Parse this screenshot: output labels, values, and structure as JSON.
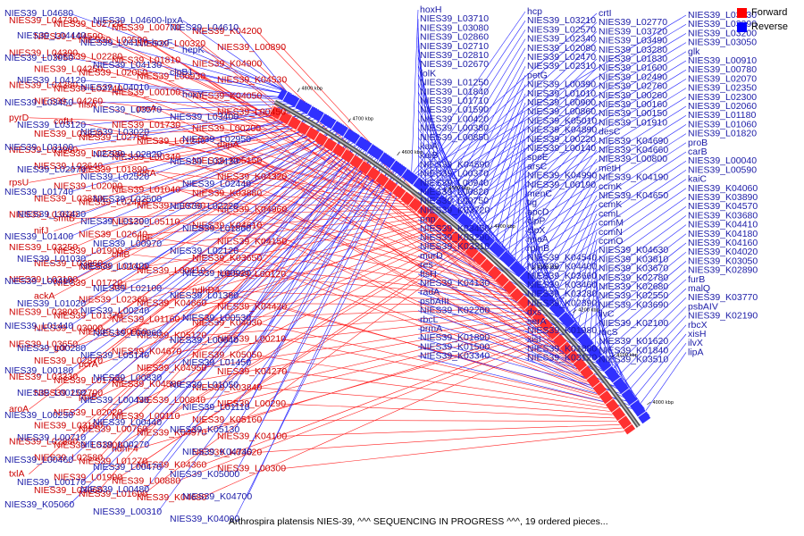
{
  "caption": "Arthrospira platensis NIES-39, ^^^ SEQUENCING IN PROGRESS ^^^, 19 ordered pieces...",
  "legend": [
    {
      "label": "Forward",
      "color": "#ff0000"
    },
    {
      "label": "Reverse",
      "color": "#0000ff"
    }
  ],
  "ticks": [
    "4800 kbp",
    "4700 kbp",
    "4600 kbp",
    "4500 kbp",
    "4400 kbp",
    "4300 kbp",
    "4200 kbp",
    "4100 kbp",
    "4000 kbp"
  ],
  "forward_labels": [
    "NIES39_L04730",
    "NIES39_L04590",
    "NIES39_L04390",
    "NIES39_L04250",
    "NIES39_L04380",
    "NIES39_L04260",
    "pyrD",
    "NIES39_L03820",
    "NIES39_L03960",
    "NIES39_L03640",
    "rpsU",
    "NIES39_L03830",
    "NIES39_L03630",
    "nifJ",
    "NIES39_L03250",
    "NIES39_L03860",
    "NIES39_L03190",
    "ackA",
    "NIES39_L03800",
    "NIES39_L03000",
    "NIES39_L03650",
    "NIES39_L02870",
    "NIES39_L03330",
    "NIES39_L02700",
    "aroA",
    "NIES39_L03180",
    "NIES39_L02880",
    "NIES39_L02580",
    "txlA",
    "NIES39_L03060",
    "NIES39_L02720",
    "NIES39_L02590",
    "NIES39_L02280",
    "NIES39_L02050",
    "NIES39_L02740",
    "hisA",
    "cofH",
    "NIES39_L02750",
    "NIES39_L02290",
    "NIES39_L01890",
    "NIES39_L02090",
    "NIES39_L02410",
    "smtB",
    "NIES39_L02640",
    "NIES39_L01900",
    "NIES39_L02010",
    "NIES39_L01720",
    "NIES39_L02360",
    "NIES39_L01370",
    "NIES39_L00950",
    "gor",
    "pcrA",
    "NIES39_L01780",
    "ppiB",
    "NIES39_L02020",
    "NIES39_L00760",
    "NIES39_L01800",
    "NIES39_L01270",
    "NIES39_L01990",
    "NIES39_L01690",
    "NIES39_L00770",
    "NIES39_L00320",
    "NIES39_L01810",
    "NIES39_L00930",
    "NIES39_L00100",
    "proA",
    "NIES39_L01730",
    "NIES39_L01240",
    "NIES39_L00340",
    "petA",
    "NIES39_L01040",
    "NIES39_L00790",
    "NIES39_L05110",
    "ribF",
    "chlB",
    "NIES39_L00410",
    "asd",
    "NIES39_K04860",
    "NIES39_L01160",
    "NIES39_K05120",
    "NIES39_K04670",
    "NIES39_K04950",
    "NIES39_K04580",
    "NIES39_L00840",
    "NIES39_L00110",
    "NIES39_K04970",
    "ndhF4",
    "NIES39_K04360",
    "NIES39_L00880",
    "NIES39_K04680",
    "NIES39_K04200",
    "NIES39_L00890",
    "NIES39_K04900",
    "NIES39_K04530",
    "NIES39_K04050",
    "NIES39_L00450",
    "NIES39_L00200",
    "dapA",
    "NIES39_K05150",
    "NIES39_K04320",
    "NIES39_K03880",
    "NIES39_K04960",
    "NIES39_K04610",
    "NIES39_K04150",
    "NIES39_K03650",
    "NIES39_L00120",
    "ndhD4",
    "NIES39_K04420",
    "NIES39_K04030",
    "NIES39_L00210",
    "NIES39_K05050",
    "NIES39_K04270",
    "NIES39_K03840",
    "NIES39_L00290",
    "NIES39_K05160",
    "NIES39_K04100",
    "NIES39_K03620",
    "NIES39_L00300"
  ],
  "reverse_labels": [
    "NIES39_L04680",
    "NIES39_L04600-lpxA",
    "NIES39_L04610",
    "NIES39_L04440",
    "NIES39_L04110-hoxF",
    "hepK",
    "NIES39_L03950",
    "NIES39_L04130",
    "clpB1",
    "NIES39_L04120",
    "NIES39_L04010",
    "hoxY",
    "NIES39_L03450",
    "NIES39_L03570",
    "NIES39_L03400",
    "NIES39_L03120",
    "NIES39_L03020",
    "NIES39_L02950",
    "NIES39_L03100",
    "NIES39_L02820",
    "NIES39_L02430",
    "NIES39_L02970",
    "NIES39_L02520",
    "NIES39_L02440",
    "NIES39_L01740",
    "NIES39_L02500",
    "NIES39_L02220",
    "NIES39_L01430",
    "NIES39_L01200",
    "NIES39_L01860",
    "NIES39_L01400",
    "NIES39_L00970",
    "NIES39_L02120",
    "NIES39_L01030",
    "NIES39_L01420",
    "NIES39_L00920",
    "NIES39_L00490",
    "NIES39_L02100",
    "NIES39_L01380",
    "NIES39_L01020",
    "NIES39_L00240",
    "NIES39_L00530",
    "NIES39_L01440",
    "NIES39_L00960",
    "NIES39_L00640",
    "NIES39_L00280",
    "NIES39_L05140",
    "NIES39_L01450",
    "NIES39_L00180",
    "NIES39_L00830",
    "NIES39_L01050",
    "NIES39_L00250",
    "NIES39_L00430",
    "NIES39_L01110",
    "NIES39_L00230",
    "NIES39_L00440",
    "NIES39_K05130",
    "NIES39_L00710",
    "NIES39_L00270",
    "NIES39_K04740",
    "NIES39_L00460",
    "NIES39_L00470",
    "NIES39_K05000",
    "NIES39_L00170",
    "NIES39_L00480",
    "NIES39_K04700",
    "NIES39_K05060",
    "NIES39_L00310",
    "NIES39_K04000",
    "hoxH",
    "hcp",
    "crtI",
    "NIES39_L03930",
    "NIES39_L03710",
    "NIES39_L03210",
    "NIES39_L02770",
    "NIES39_L03390",
    "NIES39_L03080",
    "NIES39_L02570",
    "NIES39_L03720",
    "NIES39_L03200",
    "NIES39_L02860",
    "NIES39_L02340",
    "NIES39_L03490",
    "NIES39_L03050",
    "NIES39_L02710",
    "NIES39_L02080",
    "NIES39_L03280",
    "glk",
    "NIES39_L02810",
    "NIES39_L02470",
    "NIES39_L01830",
    "NIES39_L00910",
    "NIES39_L02670",
    "NIES39_L02310",
    "NIES39_L01600",
    "NIES39_L00780",
    "folK",
    "petG",
    "NIES39_L02490",
    "NIES39_L02070",
    "NIES39_L01250",
    "NIES39_L00390",
    "NIES39_L02760",
    "NIES39_L02350",
    "NIES39_L01840",
    "NIES39_L01010",
    "NIES39_L00260",
    "NIES39_L02300",
    "NIES39_L01710",
    "NIES39_L00900",
    "NIES39_L00160",
    "NIES39_L02060",
    "NIES39_L01590",
    "NIES39_L00860",
    "NIES39_L00150",
    "NIES39_L01180",
    "NIES39_L00420",
    "NIES39_K05010",
    "NIES39_L01910",
    "NIES39_L01060",
    "NIES39_L00380",
    "NIES39_K04890",
    "desC",
    "NIES39_L01820",
    "NIES39_L00850",
    "NIES39_L00220",
    "NIES39_K04690",
    "proB",
    "kaiA",
    "NIES39_L00140",
    "NIES39_K04660",
    "carB",
    "kaiB",
    "speE",
    "NIES39_L00800",
    "NIES39_L00040",
    "NIES39_K04590",
    "arsC",
    "metH",
    "NIES39_L00590",
    "NIES39_L00370",
    "NIES39_K04990",
    "NIES39_K04190",
    "kaiC",
    "NIES39_L00940",
    "NIES39_L00190",
    "ccmK",
    "NIES39_K04060",
    "NIES39_L00820",
    "menC",
    "NIES39_K04650",
    "NIES39_K03890",
    "NIES39_L00750",
    "tig",
    "ccmK",
    "NIES39_K04570",
    "NIES39_K03720",
    "apcD",
    "ccmL",
    "NIES39_K03680",
    "pnp",
    "clpP",
    "ccmM",
    "NIES39_K04410",
    "NIES39_K03450",
    "clpX",
    "ccmN",
    "NIES39_K04180",
    "NIES39_K03290",
    "miaA",
    "ccmO",
    "NIES39_K04160",
    "NIES39_K03210",
    "rpmB",
    "NIES39_K04630",
    "NIES39_K04020",
    "murD",
    "NIES39_K04540",
    "NIES39_K03810",
    "NIES39_K03050",
    "res",
    "NIES39_K04400",
    "NIES39_K03670",
    "NIES39_K02890",
    "ftsH",
    "NIES39_K03660",
    "NIES39_K02780",
    "furB",
    "NIES39_K04130",
    "NIES39_K03460",
    "NIES39_K02680",
    "malQ",
    "radA",
    "NIES39_K03280",
    "NIES39_K02550",
    "NIES39_K03770",
    "psbAIII",
    "NIES39_K02390",
    "NIES39_K03690",
    "psbAIV",
    "NIES39_K02260",
    "dxs",
    "ilvC",
    "NIES39_K02190",
    "rbcL",
    "serA",
    "NIES39_K02100",
    "rbcX",
    "prmA",
    "NIES39_K01980",
    "rbcS",
    "xisH",
    "NIES39_K01890",
    "xisI",
    "NIES39_K01620",
    "ilvX",
    "NIES39_K01500",
    "NIES39_K01880",
    "NIES39_K01840",
    "lipA",
    "NIES39_K03340",
    "NIES39_K03120",
    "NIES39_K03510"
  ]
}
